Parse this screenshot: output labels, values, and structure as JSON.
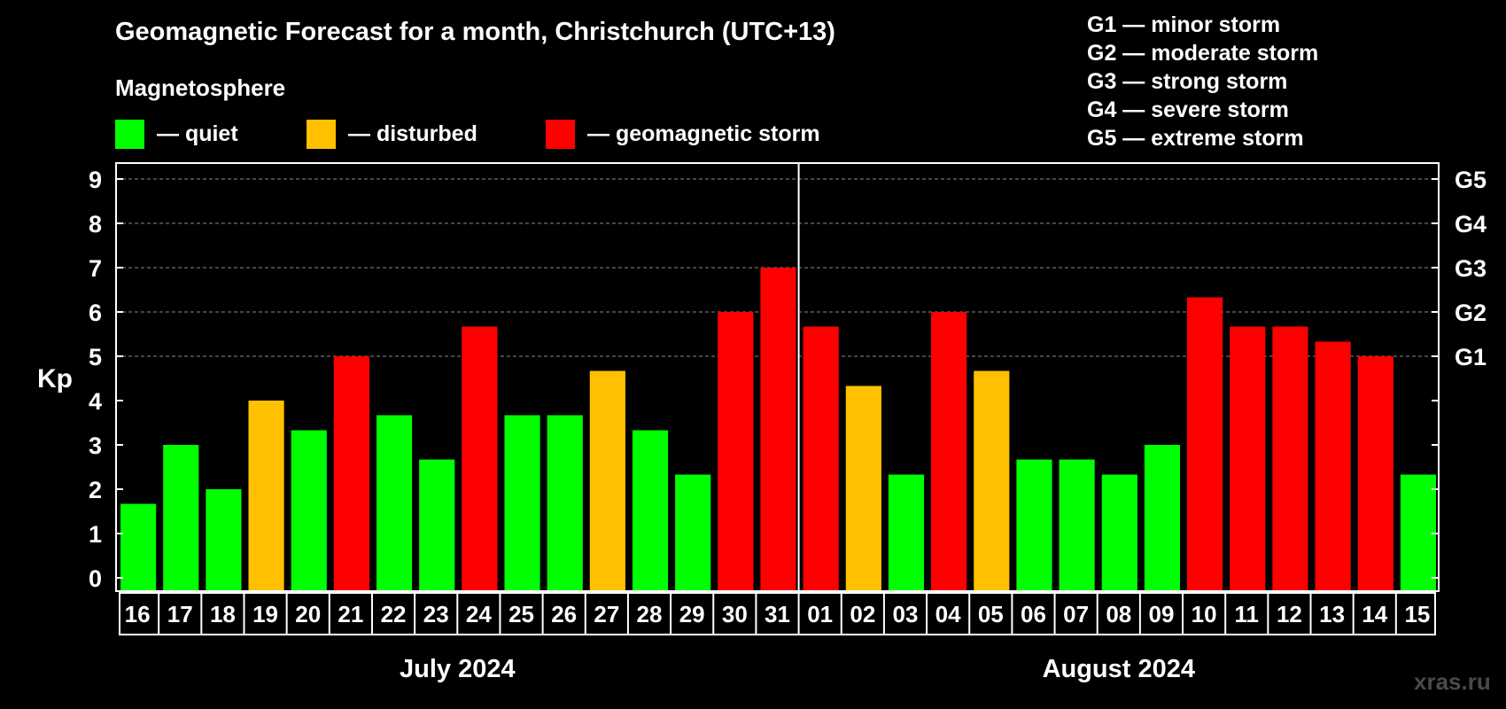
{
  "header": {
    "title": "Geomagnetic Forecast for a month, Christchurch (UTC+13)",
    "subtitle": "Magnetosphere"
  },
  "legend": [
    {
      "label": "— quiet",
      "color": "#00ff00"
    },
    {
      "label": "— disturbed",
      "color": "#ffc000"
    },
    {
      "label": "— geomagnetic storm",
      "color": "#ff0000"
    }
  ],
  "g_scale": [
    "G1 — minor storm",
    "G2 — moderate storm",
    "G3 — strong storm",
    "G4 — severe storm",
    "G5 — extreme storm"
  ],
  "watermark": "xras.ru",
  "chart_data": {
    "type": "bar",
    "ylabel": "Kp",
    "ylim": [
      0,
      9
    ],
    "y_ticks": [
      "0",
      "1",
      "2",
      "3",
      "4",
      "5",
      "6",
      "7",
      "8",
      "9"
    ],
    "right_axis_labels": [
      {
        "value": 5,
        "label": "G1"
      },
      {
        "value": 6,
        "label": "G2"
      },
      {
        "value": 7,
        "label": "G3"
      },
      {
        "value": 8,
        "label": "G4"
      },
      {
        "value": 9,
        "label": "G5"
      }
    ],
    "grid": "horizontal dashed at Kp 5 to 9",
    "month_groups": [
      {
        "label": "July 2024",
        "count": 16
      },
      {
        "label": "August 2024",
        "count": 15
      }
    ],
    "categories": [
      "16",
      "17",
      "18",
      "19",
      "20",
      "21",
      "22",
      "23",
      "24",
      "25",
      "26",
      "27",
      "28",
      "29",
      "30",
      "31",
      "01",
      "02",
      "03",
      "04",
      "05",
      "06",
      "07",
      "08",
      "09",
      "10",
      "11",
      "12",
      "13",
      "14",
      "15"
    ],
    "values": [
      1.67,
      3.0,
      2.0,
      4.0,
      3.33,
      5.0,
      3.67,
      2.67,
      5.67,
      3.67,
      3.67,
      4.67,
      3.33,
      2.33,
      6.0,
      7.0,
      5.67,
      4.33,
      2.33,
      6.0,
      4.67,
      2.67,
      2.67,
      2.33,
      3.0,
      6.33,
      5.67,
      5.67,
      5.33,
      5.0,
      2.33
    ],
    "levels": [
      "quiet",
      "quiet",
      "quiet",
      "disturbed",
      "quiet",
      "storm",
      "quiet",
      "quiet",
      "storm",
      "quiet",
      "quiet",
      "disturbed",
      "quiet",
      "quiet",
      "storm",
      "storm",
      "storm",
      "disturbed",
      "quiet",
      "storm",
      "disturbed",
      "quiet",
      "quiet",
      "quiet",
      "quiet",
      "storm",
      "storm",
      "storm",
      "storm",
      "storm",
      "quiet"
    ],
    "level_colors": {
      "quiet": "#00ff00",
      "disturbed": "#ffc000",
      "storm": "#ff0000"
    }
  }
}
